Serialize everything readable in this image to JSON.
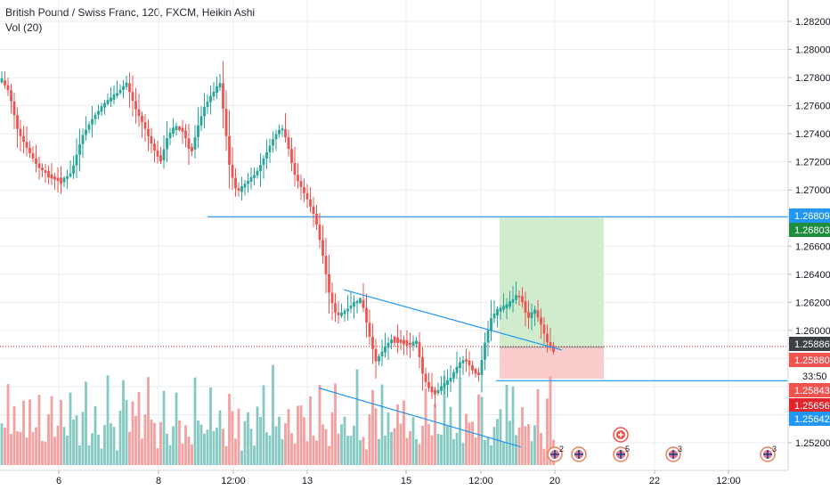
{
  "header": {
    "title": "British Pound / Swiss Franc, 120, FXCM, Heikin Ashi",
    "indicator": "Vol (20)"
  },
  "colors": {
    "up": "#26a69a",
    "down": "#ef5350",
    "vol_up": "#86c9c2",
    "vol_down": "#f4a09e",
    "line": "#2196f3",
    "profit_zone": "#cdebc9",
    "loss_zone": "#fbc9c9",
    "grid": "#e9ecf2",
    "axis_text": "#131722"
  },
  "chart_data": {
    "type": "candlestick",
    "symbol": "British Pound / Swiss Franc",
    "interval": "120",
    "source": "FXCM",
    "style": "Heikin Ashi",
    "y_axis": {
      "range": [
        1.2508,
        1.2832
      ],
      "ticks": [
        "1.28200",
        "1.28000",
        "1.27800",
        "1.27600",
        "1.27400",
        "1.27200",
        "1.27000",
        "1.26600",
        "1.26400",
        "1.26200",
        "1.26000",
        "1.25200"
      ]
    },
    "x_axis": {
      "ticks": [
        "6",
        "8",
        "12:00",
        "13",
        "15",
        "12:00",
        "20",
        "22",
        "12:00"
      ]
    },
    "price_labels": [
      {
        "value": "1.26809",
        "kind": "line"
      },
      {
        "value": "1.26803",
        "kind": "target"
      },
      {
        "value": "1.25886",
        "kind": "current"
      },
      {
        "value": "1.25880",
        "kind": "down"
      },
      {
        "value": "33:50",
        "kind": "countdown"
      },
      {
        "value": "1.25843",
        "kind": "down"
      },
      {
        "value": "1.25656",
        "kind": "down-strong"
      },
      {
        "value": "1.25642",
        "kind": "line"
      }
    ],
    "levels": {
      "upper_horizontal": 1.26809,
      "lower_horizontal": 1.25642,
      "current": 1.25886
    },
    "position": {
      "entry": 1.2588,
      "target": 1.26803,
      "stop": 1.25656
    },
    "trendlines": [
      {
        "from": [
          386,
          1.2629
        ],
        "to": [
          631,
          1.2586
        ]
      },
      {
        "from": [
          358,
          1.2559
        ],
        "to": [
          585,
          1.2517
        ]
      }
    ],
    "waypoints": [
      [
        2,
        1.2778
      ],
      [
        10,
        1.277
      ],
      [
        20,
        1.2742
      ],
      [
        30,
        1.273
      ],
      [
        42,
        1.2717
      ],
      [
        55,
        1.271
      ],
      [
        68,
        1.2706
      ],
      [
        80,
        1.2712
      ],
      [
        92,
        1.2738
      ],
      [
        105,
        1.2752
      ],
      [
        118,
        1.2762
      ],
      [
        130,
        1.2768
      ],
      [
        142,
        1.2776
      ],
      [
        152,
        1.2758
      ],
      [
        162,
        1.2745
      ],
      [
        172,
        1.273
      ],
      [
        180,
        1.272
      ],
      [
        188,
        1.2738
      ],
      [
        196,
        1.2745
      ],
      [
        206,
        1.2742
      ],
      [
        214,
        1.2725
      ],
      [
        222,
        1.2745
      ],
      [
        230,
        1.276
      ],
      [
        240,
        1.277
      ],
      [
        247,
        1.2776
      ],
      [
        252,
        1.275
      ],
      [
        258,
        1.2715
      ],
      [
        266,
        1.2698
      ],
      [
        276,
        1.2705
      ],
      [
        288,
        1.2712
      ],
      [
        298,
        1.2725
      ],
      [
        308,
        1.2738
      ],
      [
        316,
        1.2745
      ],
      [
        322,
        1.2735
      ],
      [
        330,
        1.2712
      ],
      [
        338,
        1.2702
      ],
      [
        346,
        1.2692
      ],
      [
        354,
        1.268
      ],
      [
        362,
        1.2655
      ],
      [
        370,
        1.2625
      ],
      [
        378,
        1.261
      ],
      [
        388,
        1.2614
      ],
      [
        398,
        1.262
      ],
      [
        406,
        1.2622
      ],
      [
        414,
        1.2598
      ],
      [
        422,
        1.2578
      ],
      [
        430,
        1.2586
      ],
      [
        440,
        1.2594
      ],
      [
        450,
        1.2592
      ],
      [
        460,
        1.259
      ],
      [
        468,
        1.2592
      ],
      [
        474,
        1.257
      ],
      [
        480,
        1.256
      ],
      [
        488,
        1.2555
      ],
      [
        496,
        1.256
      ],
      [
        506,
        1.2566
      ],
      [
        514,
        1.2575
      ],
      [
        522,
        1.258
      ],
      [
        530,
        1.2572
      ],
      [
        538,
        1.2568
      ],
      [
        544,
        1.259
      ],
      [
        552,
        1.261
      ],
      [
        560,
        1.2615
      ],
      [
        570,
        1.2618
      ],
      [
        580,
        1.2625
      ],
      [
        586,
        1.2622
      ],
      [
        592,
        1.2608
      ],
      [
        600,
        1.2615
      ],
      [
        607,
        1.2605
      ],
      [
        614,
        1.2592
      ],
      [
        620,
        1.2586
      ]
    ],
    "volume_pattern": [
      0.6,
      0.35,
      0.8,
      0.45,
      0.7,
      0.3,
      0.5,
      0.9,
      0.4,
      0.65,
      0.3,
      0.55,
      0.75,
      0.4,
      0.25,
      0.6,
      0.85,
      0.45,
      0.35,
      0.7,
      0.5,
      0.3,
      0.95,
      0.4,
      0.6,
      0.28,
      0.55,
      0.8,
      0.35,
      0.5,
      0.7,
      0.42,
      0.3,
      0.65,
      0.9,
      0.38,
      0.5,
      0.25,
      0.6,
      0.78
    ],
    "calendar_events": [
      {
        "label": "2"
      },
      {
        "label": ""
      },
      {
        "label": "5"
      },
      {
        "label": "3"
      },
      {
        "label": "3"
      }
    ]
  }
}
